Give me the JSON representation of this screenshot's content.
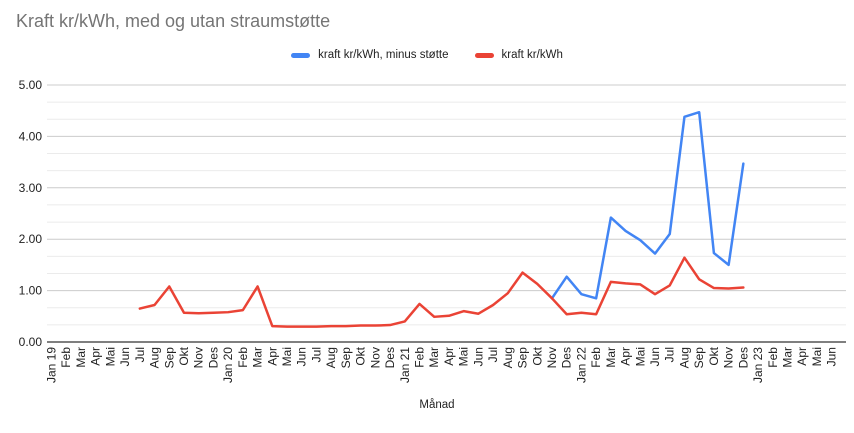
{
  "chart_data": {
    "type": "line",
    "title": "Kraft kr/kWh, med og utan straumstøtte",
    "xlabel": "Månad",
    "ylabel": "",
    "ylim": [
      0,
      5
    ],
    "y_ticks": [
      "0.00",
      "1.00",
      "2.00",
      "3.00",
      "4.00",
      "5.00"
    ],
    "grid": "major-and-minor",
    "minor_gridlines_per_major": 2,
    "legend_position": "top-center",
    "categories": [
      "Jan 19",
      "Feb",
      "Mar",
      "Apr",
      "Mai",
      "Jun",
      "Jul",
      "Aug",
      "Sep",
      "Okt",
      "Nov",
      "Des",
      "Jan 20",
      "Feb",
      "Mar",
      "Apr",
      "Mai",
      "Jun",
      "Jul",
      "Aug",
      "Sep",
      "Okt",
      "Nov",
      "Des",
      "Jan 21",
      "Feb",
      "Mar",
      "Apr",
      "Mai",
      "Jun",
      "Jul",
      "Aug",
      "Sep",
      "Okt",
      "Nov",
      "Des",
      "Jan 22",
      "Feb",
      "Mar",
      "Apr",
      "Mai",
      "Jun",
      "Jul",
      "Aug",
      "Sep",
      "Okt",
      "Nov",
      "Des",
      "Jan 23",
      "Feb",
      "Mar",
      "Apr",
      "Mai",
      "Jun"
    ],
    "series": [
      {
        "id": "minus-stotte",
        "name": "kraft kr/kWh, minus støtte",
        "color": "#4285F4",
        "start_category": "Nov 21",
        "start_index": 34,
        "values": [
          0.85,
          1.27,
          0.93,
          0.85,
          2.42,
          2.16,
          1.98,
          1.72,
          2.1,
          4.38,
          4.47,
          1.73,
          1.5,
          3.47
        ]
      },
      {
        "id": "kraft",
        "name": "kraft kr/kWh",
        "color": "#EA4335",
        "start_category": "Jul 19",
        "start_index": 6,
        "values": [
          0.65,
          0.72,
          1.08,
          0.57,
          0.56,
          0.57,
          0.58,
          0.62,
          1.08,
          0.31,
          0.3,
          0.3,
          0.3,
          0.31,
          0.31,
          0.32,
          0.32,
          0.33,
          0.4,
          0.74,
          0.49,
          0.51,
          0.6,
          0.55,
          0.72,
          0.95,
          1.35,
          1.13,
          0.85,
          0.54,
          0.57,
          0.54,
          1.17,
          1.14,
          1.12,
          0.93,
          1.1,
          1.64,
          1.22,
          1.05,
          1.04,
          1.06
        ]
      }
    ]
  },
  "colors": {
    "background": "#ffffff",
    "title_text": "#757575",
    "tick_text": "#222222",
    "major_gridline": "#cccccc",
    "minor_gridline": "#ebebeb",
    "axis_line": "#333333",
    "series_blue": "#4285F4",
    "series_red": "#EA4335"
  }
}
